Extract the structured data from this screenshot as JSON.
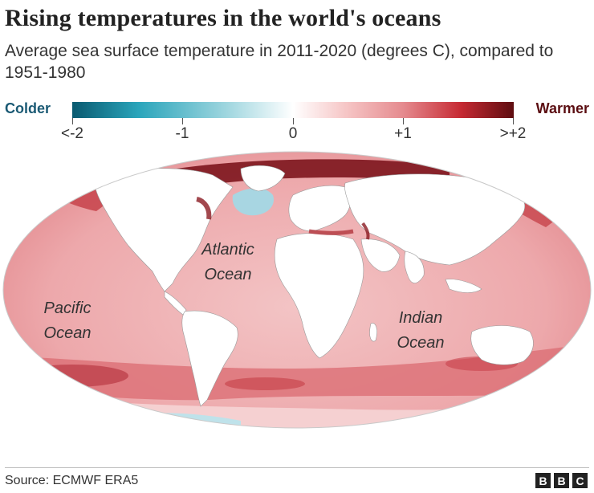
{
  "title": "Rising temperatures in the world's oceans",
  "subtitle": "Average sea surface temperature in 2011-2020 (degrees C), compared to 1951-1980",
  "legend": {
    "colder": "Colder",
    "warmer": "Warmer",
    "ticks": [
      "<-2",
      "-1",
      "0",
      "+1",
      ">+2"
    ],
    "scale_colors": [
      "#0a5a70",
      "#2aa5bb",
      "#ffffff",
      "#e58a8e",
      "#5e0d10"
    ]
  },
  "map": {
    "ocean_labels": {
      "atlantic_line1": "Atlantic",
      "atlantic_line2": "Ocean",
      "pacific_line1": "Pacific",
      "pacific_line2": "Ocean",
      "indian_line1": "Indian",
      "indian_line2": "Ocean"
    },
    "colors": {
      "ocean_warm": "#efb4b6",
      "ocean_hot": "#d2535b",
      "ocean_extreme": "#8b1a22",
      "ocean_cold": "#a8d9e3",
      "land": "#ffffff"
    }
  },
  "source": "Source: ECMWF ERA5",
  "brand": [
    "B",
    "B",
    "C"
  ]
}
